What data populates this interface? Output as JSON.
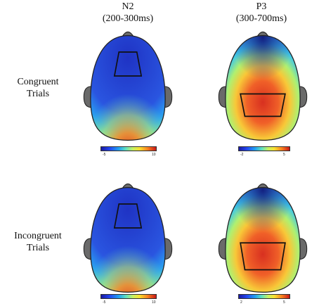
{
  "columns": [
    {
      "name": "N2",
      "window": "(200-300ms)"
    },
    {
      "name": "P3",
      "window": "(300-700ms)"
    }
  ],
  "rows": [
    {
      "label_line1": "Congruent",
      "label_line2": "Trials"
    },
    {
      "label_line1": "Incongruent",
      "label_line2": "Trials"
    }
  ],
  "scales": {
    "n2_congruent": {
      "min": "-5",
      "max": "10"
    },
    "p3_congruent": {
      "min": "-2",
      "max": "5"
    },
    "n2_incongruent": {
      "min": "-5",
      "max": "10"
    },
    "p3_incongruent": {
      "min": "2",
      "max": "5"
    }
  },
  "colors": {
    "low": "#1a2ec8",
    "mid": "#5fe0c0",
    "high": "#e02818",
    "head_outline": "#222222",
    "ears": "#6a6a6a"
  }
}
